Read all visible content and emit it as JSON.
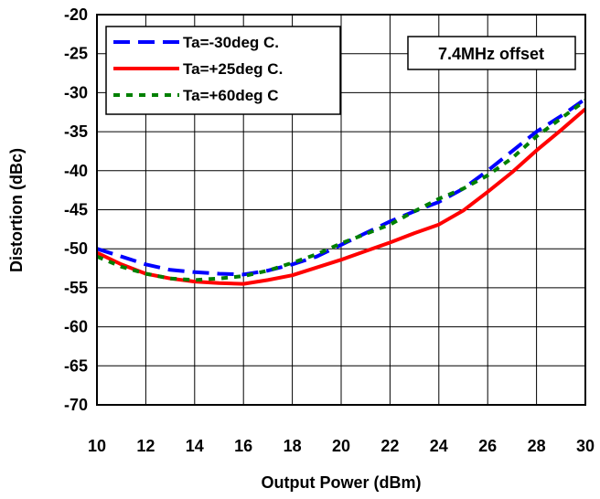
{
  "chart_data": {
    "type": "line",
    "xlabel": "Output Power (dBm)",
    "ylabel": "Distortion (dBc)",
    "xlim": [
      10,
      30
    ],
    "ylim": [
      -70,
      -20
    ],
    "xticks": [
      "10",
      "12",
      "14",
      "16",
      "18",
      "20",
      "22",
      "24",
      "26",
      "28",
      "30"
    ],
    "yticks": [
      "-20",
      "-25",
      "-30",
      "-35",
      "-40",
      "-45",
      "-50",
      "-55",
      "-60",
      "-65",
      "-70"
    ],
    "grid": true,
    "legend_position": "top-left",
    "annotation": "7.4MHz offset",
    "series": [
      {
        "name": "Ta=-30deg C.",
        "color": "#0000ff",
        "style": "dashed",
        "x": [
          10,
          11,
          12,
          13,
          14,
          15,
          16,
          17,
          18,
          19,
          20,
          21,
          22,
          23,
          24,
          25,
          26,
          27,
          28,
          29,
          30
        ],
        "y": [
          -50,
          -51,
          -52,
          -52.7,
          -53,
          -53.2,
          -53.3,
          -52.8,
          -52,
          -51,
          -49.5,
          -48,
          -46.5,
          -45.2,
          -44,
          -42.3,
          -40,
          -37.5,
          -35,
          -33,
          -30.8
        ]
      },
      {
        "name": "Ta=+25deg C.",
        "color": "#ff0000",
        "style": "solid",
        "x": [
          10,
          11,
          12,
          13,
          14,
          15,
          16,
          17,
          18,
          19,
          20,
          21,
          22,
          23,
          24,
          25,
          26,
          27,
          28,
          29,
          30
        ],
        "y": [
          -50.5,
          -52,
          -53.2,
          -53.8,
          -54.2,
          -54.4,
          -54.5,
          -54,
          -53.4,
          -52.4,
          -51.4,
          -50.3,
          -49.2,
          -48,
          -46.9,
          -45.1,
          -42.7,
          -40.2,
          -37.4,
          -34.8,
          -32.1
        ]
      },
      {
        "name": "Ta=+60deg C",
        "color": "#008000",
        "style": "dotted",
        "x": [
          10,
          11,
          12,
          13,
          14,
          15,
          16,
          17,
          18,
          19,
          20,
          21,
          22,
          23,
          24,
          25,
          26,
          27,
          28,
          29,
          30
        ],
        "y": [
          -51,
          -52.3,
          -53.2,
          -53.8,
          -54,
          -53.8,
          -53.5,
          -52.8,
          -51.8,
          -50.7,
          -49.3,
          -48.1,
          -46.9,
          -45.2,
          -43.6,
          -42.3,
          -40.6,
          -38.4,
          -35.6,
          -33.3,
          -31
        ]
      }
    ]
  }
}
